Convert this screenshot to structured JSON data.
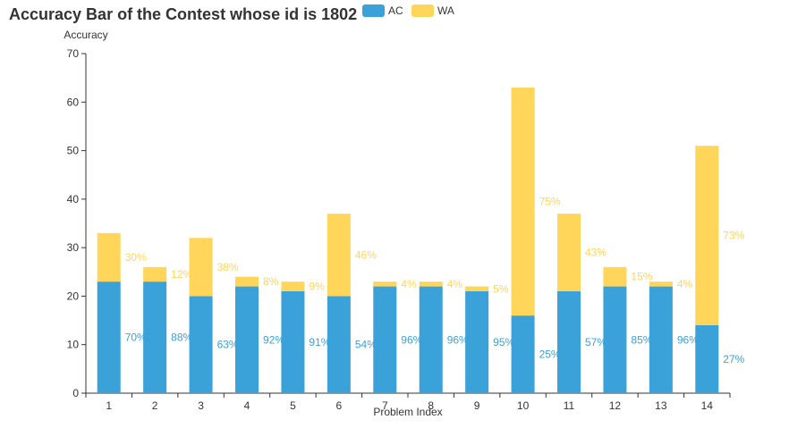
{
  "chart_data": {
    "type": "bar",
    "stacked": true,
    "title": "Accuracy Bar of the Contest whose id is 1802",
    "xlabel": "Problem Index",
    "ylabel": "Accuracy",
    "ylim": [
      0,
      70
    ],
    "yticks": [
      0,
      10,
      20,
      30,
      40,
      50,
      60,
      70
    ],
    "categories": [
      "1",
      "2",
      "3",
      "4",
      "5",
      "6",
      "7",
      "8",
      "9",
      "10",
      "11",
      "12",
      "13",
      "14"
    ],
    "series": [
      {
        "name": "AC",
        "color": "#3ba1d9",
        "values": [
          23,
          23,
          20,
          22,
          21,
          20,
          22,
          22,
          21,
          16,
          21,
          22,
          22,
          14
        ],
        "labels": [
          "70%",
          "88%",
          "63%",
          "92%",
          "91%",
          "54%",
          "96%",
          "96%",
          "95%",
          "25%",
          "57%",
          "85%",
          "96%",
          "27%"
        ]
      },
      {
        "name": "WA",
        "color": "#ffd55a",
        "values": [
          10,
          3,
          12,
          2,
          2,
          17,
          1,
          1,
          1,
          47,
          16,
          4,
          1,
          37
        ],
        "labels": [
          "30%",
          "12%",
          "38%",
          "8%",
          "9%",
          "46%",
          "4%",
          "4%",
          "5%",
          "75%",
          "43%",
          "15%",
          "4%",
          "73%"
        ]
      }
    ],
    "legend_position": "top-center",
    "grid": false
  }
}
